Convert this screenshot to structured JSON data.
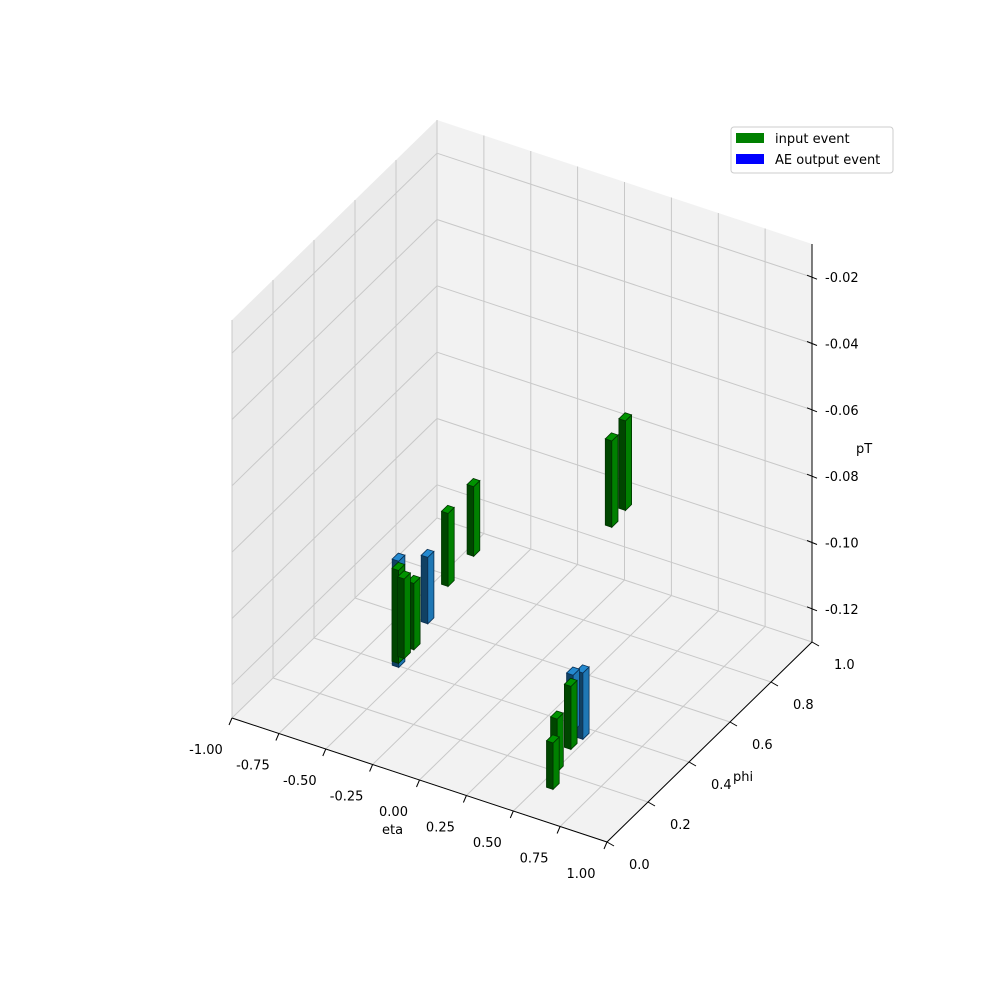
{
  "chart_data": {
    "type": "bar3d",
    "xlabel": "eta",
    "ylabel": "phi",
    "zlabel": "pT",
    "xlim": [
      -1.0,
      1.0
    ],
    "ylim": [
      0.0,
      1.0
    ],
    "zlim": [
      -0.13,
      -0.01
    ],
    "grid": true,
    "legend_position": "top-right",
    "x_ticks": [
      "-1.00",
      "-0.75",
      "-0.50",
      "-0.25",
      "0.00",
      "0.25",
      "0.50",
      "0.75",
      "1.00"
    ],
    "y_ticks": [
      "0.0",
      "0.2",
      "0.4",
      "0.6",
      "0.8",
      "1.0"
    ],
    "z_ticks": [
      "-0.02",
      "-0.04",
      "-0.06",
      "-0.08",
      "-0.10",
      "-0.12"
    ],
    "series": [
      {
        "name": "input event",
        "color": "#008000",
        "bars": [
          {
            "eta": 0.15,
            "phi": 0.8,
            "z0": -0.098,
            "z1": -0.072
          },
          {
            "eta": 0.19,
            "phi": 0.83,
            "z0": -0.094,
            "z1": -0.067
          },
          {
            "eta": -0.45,
            "phi": 0.55,
            "z0": -0.112,
            "z1": -0.09
          },
          {
            "eta": -0.39,
            "phi": 0.62,
            "z0": -0.106,
            "z1": -0.085
          },
          {
            "eta": -0.55,
            "phi": 0.4,
            "z0": -0.128,
            "z1": -0.1
          },
          {
            "eta": -0.52,
            "phi": 0.4,
            "z0": -0.126,
            "z1": -0.102
          },
          {
            "eta": -0.49,
            "phi": 0.42,
            "z0": -0.124,
            "z1": -0.104
          },
          {
            "eta": 0.58,
            "phi": 0.14,
            "z0": -0.124,
            "z1": -0.108
          },
          {
            "eta": 0.61,
            "phi": 0.18,
            "z0": -0.119,
            "z1": -0.1
          },
          {
            "eta": 0.58,
            "phi": 0.12,
            "z0": -0.128,
            "z1": -0.114
          }
        ]
      },
      {
        "name": "AE output event",
        "color": "#1f77b4",
        "bars": [
          {
            "eta": -0.56,
            "phi": 0.41,
            "z0": -0.13,
            "z1": -0.098
          },
          {
            "eta": -0.46,
            "phi": 0.46,
            "z0": -0.118,
            "z1": -0.098
          },
          {
            "eta": 0.63,
            "phi": 0.22,
            "z0": -0.118,
            "z1": -0.098
          },
          {
            "eta": 0.6,
            "phi": 0.2,
            "z0": -0.115,
            "z1": -0.098
          }
        ]
      }
    ]
  }
}
